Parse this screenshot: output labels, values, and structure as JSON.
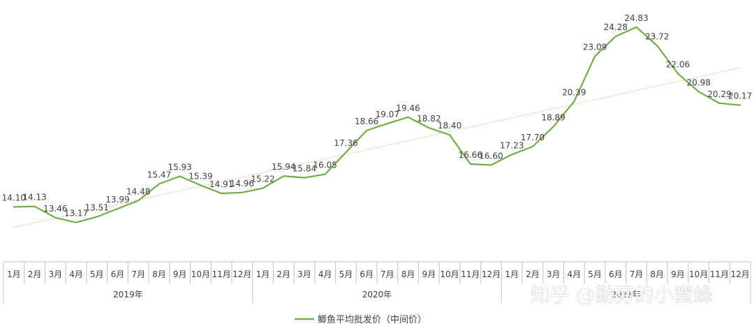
{
  "chart_data": {
    "type": "line",
    "years": [
      "2019年",
      "2020年",
      "2021年"
    ],
    "months": [
      "1月",
      "2月",
      "3月",
      "4月",
      "5月",
      "6月",
      "7月",
      "8月",
      "9月",
      "10月",
      "11月",
      "12月"
    ],
    "x": [
      "2019-01",
      "2019-02",
      "2019-03",
      "2019-04",
      "2019-05",
      "2019-06",
      "2019-07",
      "2019-08",
      "2019-09",
      "2019-10",
      "2019-11",
      "2019-12",
      "2020-01",
      "2020-02",
      "2020-03",
      "2020-04",
      "2020-05",
      "2020-06",
      "2020-07",
      "2020-08",
      "2020-09",
      "2020-10",
      "2020-11",
      "2020-12",
      "2021-01",
      "2021-02",
      "2021-03",
      "2021-04",
      "2021-05",
      "2021-06",
      "2021-07",
      "2021-08",
      "2021-09",
      "2021-10",
      "2021-11",
      "2021-12"
    ],
    "series": [
      {
        "name": "鲫鱼平均批发价（中间价）",
        "color": "#70ad47",
        "values": [
          14.1,
          14.13,
          13.46,
          13.17,
          13.51,
          13.99,
          14.48,
          15.47,
          15.93,
          15.39,
          14.91,
          14.96,
          15.22,
          15.94,
          15.84,
          16.05,
          17.36,
          18.66,
          19.07,
          19.46,
          18.82,
          18.4,
          16.66,
          16.6,
          17.23,
          17.7,
          18.89,
          20.39,
          23.09,
          24.28,
          24.83,
          23.72,
          22.06,
          20.98,
          20.29,
          20.17
        ]
      }
    ],
    "trendline": {
      "type": "linear",
      "color": "#a9d18e",
      "style": "dotted"
    },
    "xlabel": "",
    "ylabel": "",
    "ylim": [
      12.2,
      25.2
    ],
    "grid": false,
    "legend": "bottom-center"
  },
  "watermark": "知乎 @勤劳的小蜜蜂"
}
